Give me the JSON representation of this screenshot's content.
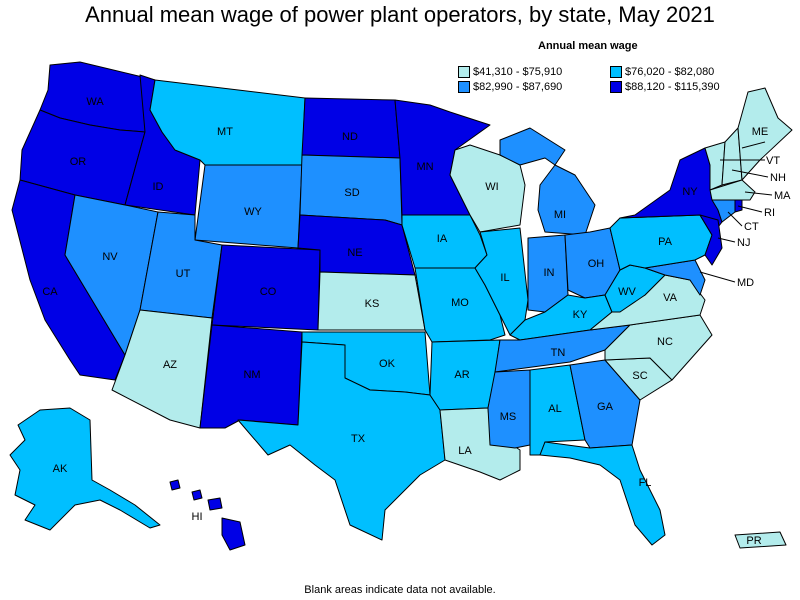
{
  "title": "Annual mean wage of power plant operators, by state, May 2021",
  "legend": {
    "title": "Annual mean wage",
    "items": [
      {
        "label": "$41,310 - $75,910",
        "color": "#b3ecec"
      },
      {
        "label": "$76,020 - $82,080",
        "color": "#00bfff"
      },
      {
        "label": "$82,990 - $87,690",
        "color": "#1e90ff"
      },
      {
        "label": "$88,120 - $115,390",
        "color": "#0000e6"
      }
    ]
  },
  "footnote": "Blank areas indicate data not available.",
  "states": {
    "WA": "WA",
    "OR": "OR",
    "CA": "CA",
    "ID": "ID",
    "NV": "NV",
    "MT": "MT",
    "WY": "WY",
    "UT": "UT",
    "AZ": "AZ",
    "CO": "CO",
    "NM": "NM",
    "ND": "ND",
    "SD": "SD",
    "NE": "NE",
    "KS": "KS",
    "OK": "OK",
    "TX": "TX",
    "MN": "MN",
    "IA": "IA",
    "MO": "MO",
    "AR": "AR",
    "LA": "LA",
    "WI": "WI",
    "IL": "IL",
    "MI": "MI",
    "IN": "IN",
    "OH": "OH",
    "KY": "KY",
    "TN": "TN",
    "MS": "MS",
    "AL": "AL",
    "GA": "GA",
    "FL": "FL",
    "SC": "SC",
    "NC": "NC",
    "VA": "VA",
    "WV": "WV",
    "PA": "PA",
    "NY": "NY",
    "ME": "ME",
    "VT": "VT",
    "NH": "NH",
    "MA": "MA",
    "RI": "RI",
    "CT": "CT",
    "NJ": "NJ",
    "MD": "MD",
    "AK": "AK",
    "HI": "HI",
    "PR": "PR"
  }
}
